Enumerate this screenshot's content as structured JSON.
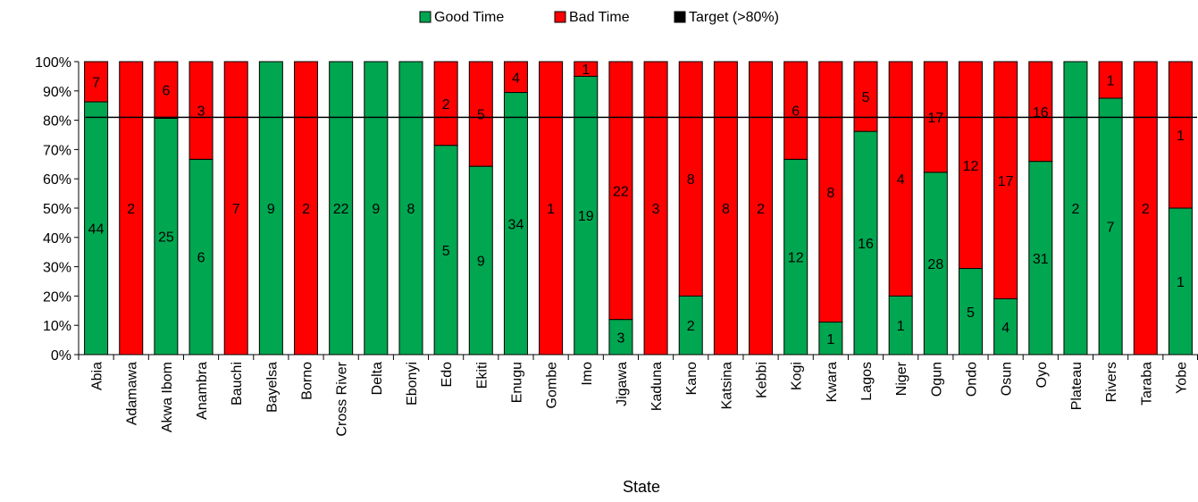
{
  "chart_data": {
    "type": "bar",
    "stacked": true,
    "percent": true,
    "xlabel": "State",
    "ylabel": "",
    "ylim": [
      0,
      100
    ],
    "yticks": [
      "0%",
      "10%",
      "20%",
      "30%",
      "40%",
      "50%",
      "60%",
      "70%",
      "80%",
      "90%",
      "100%"
    ],
    "legend_position": "top",
    "grid": false,
    "categories": [
      "Abia",
      "Adamawa",
      "Akwa Ibom",
      "Anambra",
      "Bauchi",
      "Bayelsa",
      "Borno",
      "Cross River",
      "Delta",
      "Ebonyi",
      "Edo",
      "Ekiti",
      "Enugu",
      "Gombe",
      "Imo",
      "Jigawa",
      "Kaduna",
      "Kano",
      "Katsina",
      "Kebbi",
      "Kogi",
      "Kwara",
      "Lagos",
      "Niger",
      "Ogun",
      "Ondo",
      "Osun",
      "Oyo",
      "Plateau",
      "Rivers",
      "Taraba",
      "Yobe"
    ],
    "series": [
      {
        "name": "Good Time",
        "color": "#00a650",
        "values": [
          44,
          0,
          25,
          6,
          0,
          9,
          0,
          22,
          9,
          8,
          5,
          9,
          34,
          0,
          19,
          3,
          0,
          2,
          0,
          0,
          12,
          1,
          16,
          1,
          28,
          5,
          4,
          31,
          2,
          7,
          0,
          1
        ]
      },
      {
        "name": "Bad Time",
        "color": "#ff0000",
        "values": [
          7,
          2,
          6,
          3,
          7,
          0,
          2,
          0,
          0,
          0,
          2,
          5,
          4,
          1,
          1,
          22,
          3,
          8,
          8,
          2,
          6,
          8,
          5,
          4,
          17,
          12,
          17,
          16,
          0,
          1,
          2,
          1
        ]
      }
    ],
    "target": {
      "name": "Target (>80%)",
      "value": 81,
      "color": "#000000"
    }
  }
}
